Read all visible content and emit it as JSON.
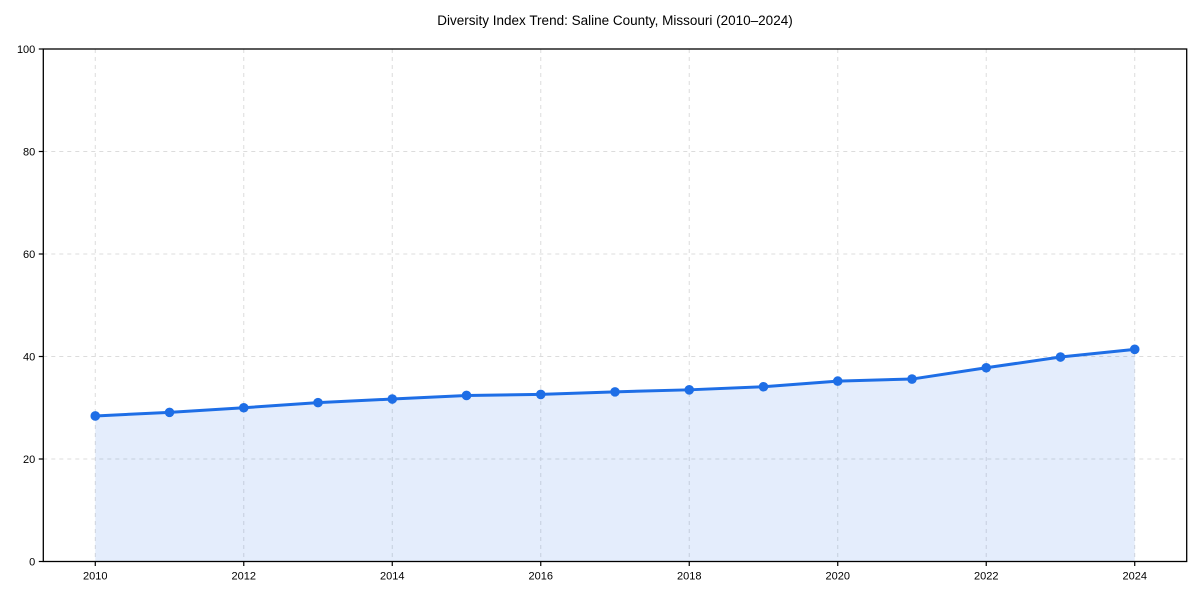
{
  "chart_data": {
    "type": "area",
    "title": "Diversity Index Trend: Saline County, Missouri (2010–2024)",
    "xlabel": "",
    "ylabel": "",
    "x": [
      2010,
      2011,
      2012,
      2013,
      2014,
      2015,
      2016,
      2017,
      2018,
      2019,
      2020,
      2021,
      2022,
      2023,
      2024
    ],
    "series": [
      {
        "name": "Diversity Index",
        "values": [
          28.4,
          29.1,
          30.0,
          31.0,
          31.7,
          32.4,
          32.6,
          33.1,
          33.5,
          34.1,
          35.2,
          35.6,
          37.8,
          39.9,
          41.4
        ]
      }
    ],
    "xticks": [
      2010,
      2012,
      2014,
      2016,
      2018,
      2020,
      2022,
      2024
    ],
    "yticks": [
      0,
      20,
      40,
      60,
      80,
      100
    ],
    "ylim": [
      0,
      100
    ],
    "x_margin_frac": 0.05,
    "grid": "dashed",
    "legend": "none",
    "colors": {
      "line": "#1e6ee6",
      "marker": "#1e6ee6",
      "area_fill": "rgba(31,111,229,0.12)",
      "gridline": "#dcdcdc",
      "spine": "#000000",
      "tick": "#000000",
      "text": "#000000",
      "background": "#ffffff"
    }
  }
}
